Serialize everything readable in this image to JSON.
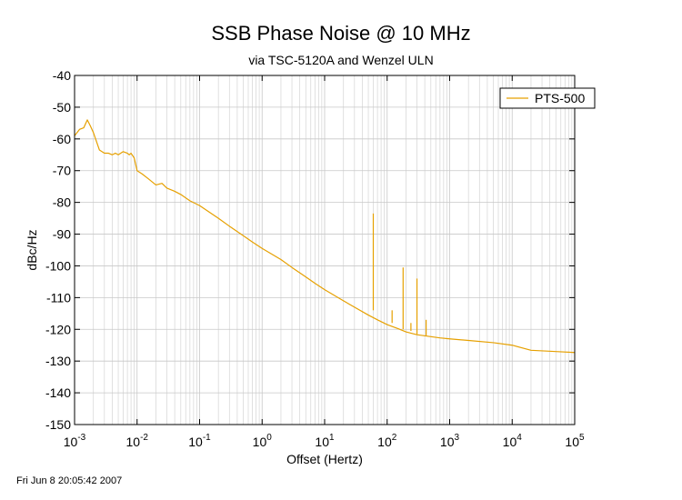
{
  "chart_data": {
    "type": "line",
    "title": "SSB Phase Noise @ 10 MHz",
    "subtitle": "via TSC-5120A and Wenzel ULN",
    "xlabel": "Offset (Hertz)",
    "ylabel": "dBc/Hz",
    "x_scale": "log",
    "xlim": [
      0.001,
      100000
    ],
    "ylim": [
      -150,
      -40
    ],
    "x_ticks": [
      {
        "base": "10",
        "exp": "-3"
      },
      {
        "base": "10",
        "exp": "-2"
      },
      {
        "base": "10",
        "exp": "-1"
      },
      {
        "base": "10",
        "exp": "0"
      },
      {
        "base": "10",
        "exp": "1"
      },
      {
        "base": "10",
        "exp": "2"
      },
      {
        "base": "10",
        "exp": "3"
      },
      {
        "base": "10",
        "exp": "4"
      },
      {
        "base": "10",
        "exp": "5"
      }
    ],
    "y_ticks": [
      -40,
      -50,
      -60,
      -70,
      -80,
      -90,
      -100,
      -110,
      -120,
      -130,
      -140,
      -150
    ],
    "grid": true,
    "legend_position": "top-right",
    "series": [
      {
        "name": "PTS-500",
        "color": "#e6a000",
        "points": [
          [
            0.001,
            -59
          ],
          [
            0.0012,
            -57
          ],
          [
            0.0014,
            -56.5
          ],
          [
            0.0016,
            -54
          ],
          [
            0.0018,
            -56
          ],
          [
            0.002,
            -58
          ],
          [
            0.0025,
            -63.5
          ],
          [
            0.003,
            -64.5
          ],
          [
            0.0035,
            -64.5
          ],
          [
            0.004,
            -65
          ],
          [
            0.0045,
            -64.5
          ],
          [
            0.005,
            -65
          ],
          [
            0.006,
            -64
          ],
          [
            0.007,
            -64.5
          ],
          [
            0.0075,
            -65
          ],
          [
            0.008,
            -64.5
          ],
          [
            0.009,
            -66
          ],
          [
            0.01,
            -70
          ],
          [
            0.012,
            -71
          ],
          [
            0.015,
            -72.5
          ],
          [
            0.02,
            -74.5
          ],
          [
            0.025,
            -74
          ],
          [
            0.03,
            -75.5
          ],
          [
            0.04,
            -76.5
          ],
          [
            0.05,
            -77.5
          ],
          [
            0.07,
            -79.5
          ],
          [
            0.1,
            -81
          ],
          [
            0.2,
            -85
          ],
          [
            0.3,
            -87.5
          ],
          [
            0.5,
            -90.5
          ],
          [
            0.7,
            -92.5
          ],
          [
            1,
            -94.5
          ],
          [
            2,
            -98
          ],
          [
            3,
            -100.5
          ],
          [
            5,
            -103.5
          ],
          [
            7,
            -105.5
          ],
          [
            10,
            -107.5
          ],
          [
            20,
            -111
          ],
          [
            30,
            -113
          ],
          [
            50,
            -115.5
          ],
          [
            70,
            -117
          ],
          [
            100,
            -118.5
          ],
          [
            150,
            -119.8
          ],
          [
            200,
            -120.8
          ],
          [
            300,
            -121.7
          ],
          [
            500,
            -122.3
          ],
          [
            700,
            -122.7
          ],
          [
            1000,
            -123
          ],
          [
            2000,
            -123.5
          ],
          [
            5000,
            -124.2
          ],
          [
            10000,
            -125
          ],
          [
            20000,
            -126.6
          ],
          [
            50000,
            -127
          ],
          [
            100000,
            -127.3
          ]
        ]
      }
    ],
    "spurs": [
      {
        "x": 60,
        "base": -114,
        "peak": -83.5
      },
      {
        "x": 120,
        "base": -118,
        "peak": -114
      },
      {
        "x": 180,
        "base": -120,
        "peak": -100.5
      },
      {
        "x": 240,
        "base": -120.5,
        "peak": -118
      },
      {
        "x": 300,
        "base": -121.5,
        "peak": -104
      },
      {
        "x": 420,
        "base": -122,
        "peak": -117
      }
    ]
  },
  "footer": {
    "timestamp": "Fri Jun  8 20:05:42 2007"
  }
}
